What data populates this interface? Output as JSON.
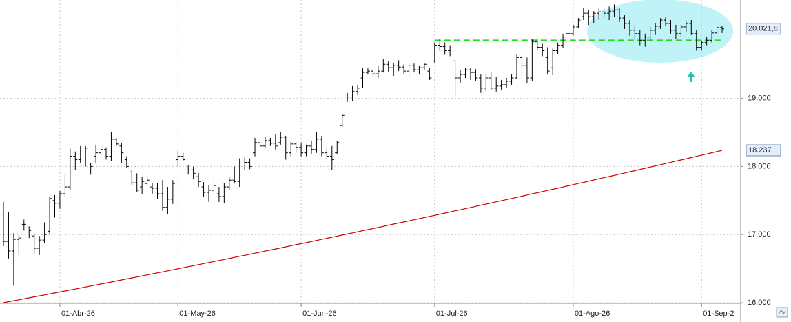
{
  "chart_data": {
    "type": "ohlc",
    "categories": [
      null,
      null,
      null,
      null,
      null,
      null,
      null,
      null,
      null,
      null,
      null,
      "01-Abr-26",
      null,
      null,
      null,
      null,
      null,
      null,
      null,
      null,
      null,
      null,
      null,
      null,
      null,
      null,
      null,
      null,
      null,
      null,
      null,
      null,
      null,
      null,
      "01-May-26",
      null,
      null,
      null,
      null,
      null,
      null,
      null,
      null,
      null,
      null,
      null,
      null,
      null,
      null,
      null,
      null,
      null,
      null,
      null,
      null,
      null,
      null,
      null,
      "01-Jun-26",
      null,
      null,
      null,
      null,
      null,
      null,
      null,
      null,
      null,
      null,
      null,
      null,
      null,
      null,
      null,
      null,
      null,
      null,
      null,
      null,
      null,
      null,
      null,
      null,
      null,
      "01-Jul-26",
      null,
      null,
      null,
      null,
      null,
      null,
      null,
      null,
      null,
      null,
      null,
      null,
      null,
      null,
      null,
      null,
      null,
      null,
      null,
      null,
      null,
      null,
      null,
      null,
      null,
      null,
      "01-Ago-26",
      null,
      null,
      null,
      null,
      null,
      null,
      null,
      null,
      null,
      null,
      null,
      null,
      null,
      null,
      null,
      null,
      null,
      null,
      null,
      null,
      null,
      null,
      null,
      null,
      "01-Sep-2",
      null,
      null,
      null,
      null
    ],
    "open": [
      17300,
      16900,
      16760,
      16930,
      17150,
      17100,
      16980,
      16800,
      16920,
      17050,
      17500,
      17460,
      17600,
      17700,
      18150,
      18100,
      18080,
      18020,
      18150,
      18200,
      18250,
      18150,
      18400,
      18300,
      18100,
      17920,
      17760,
      17700,
      17750,
      17700,
      17680,
      17600,
      17400,
      17520,
      18100,
      18150,
      17980,
      17950,
      17850,
      17700,
      17620,
      17650,
      17600,
      17560,
      17700,
      17800,
      17780,
      18080,
      18060,
      18200,
      18350,
      18300,
      18380,
      18340,
      18350,
      18430,
      18200,
      18330,
      18280,
      18200,
      18300,
      18250,
      18400,
      18200,
      18150,
      18200,
      18600,
      18960,
      19020,
      19100,
      19300,
      19380,
      19400,
      19360,
      19400,
      19500,
      19450,
      19480,
      19460,
      19400,
      19480,
      19420,
      19450,
      19400,
      19550,
      19780,
      19760,
      19700,
      19550,
      19300,
      19350,
      19420,
      19380,
      19300,
      19150,
      19300,
      19150,
      19180,
      19200,
      19250,
      19300,
      19600,
      19480,
      19300,
      19830,
      19750,
      19600,
      19450,
      19700,
      19780,
      19950,
      19950,
      20050,
      20200,
      20250,
      20200,
      20250,
      20270,
      20250,
      20280,
      20300,
      20180,
      20100,
      20000,
      19950,
      19850,
      19900,
      20000,
      20060,
      20150,
      20100,
      20000,
      19950,
      20050,
      20100,
      19950,
      19750,
      19820,
      19850,
      19960,
      20040
    ],
    "high": [
      17480,
      17330,
      17020,
      16990,
      17220,
      17120,
      17010,
      16980,
      17180,
      17560,
      17580,
      17640,
      17880,
      18260,
      18220,
      18300,
      18300,
      18050,
      18320,
      18330,
      18280,
      18500,
      18420,
      18350,
      18150,
      17950,
      17900,
      17850,
      17860,
      17760,
      17760,
      17800,
      17700,
      17800,
      18230,
      18200,
      18020,
      18000,
      17900,
      17770,
      17720,
      17800,
      17700,
      17760,
      17850,
      18000,
      18120,
      18130,
      18120,
      18420,
      18420,
      18430,
      18420,
      18470,
      18500,
      18450,
      18360,
      18360,
      18350,
      18320,
      18380,
      18500,
      18450,
      18280,
      18300,
      18370,
      18770,
      19080,
      19180,
      19200,
      19440,
      19440,
      19420,
      19480,
      19580,
      19550,
      19520,
      19560,
      19500,
      19520,
      19510,
      19480,
      19520,
      19450,
      19820,
      19870,
      19820,
      19780,
      19560,
      19420,
      19450,
      19450,
      19430,
      19350,
      19350,
      19380,
      19320,
      19270,
      19300,
      19350,
      19640,
      19660,
      19600,
      19870,
      19880,
      19800,
      19750,
      19730,
      19820,
      19950,
      20000,
      20080,
      20180,
      20330,
      20300,
      20280,
      20320,
      20330,
      20350,
      20380,
      20320,
      20220,
      20150,
      20080,
      20000,
      19950,
      20050,
      20100,
      20180,
      20200,
      20150,
      20080,
      20080,
      20130,
      20150,
      20000,
      19850,
      19900,
      20000,
      20060,
      20060
    ],
    "low": [
      16830,
      16650,
      16250,
      16700,
      17060,
      16950,
      16720,
      16700,
      16880,
      17000,
      17250,
      17380,
      17550,
      17650,
      17950,
      18050,
      18000,
      17880,
      18050,
      18100,
      18100,
      18080,
      18300,
      18050,
      17980,
      17730,
      17620,
      17600,
      17720,
      17600,
      17520,
      17350,
      17300,
      17450,
      18000,
      18080,
      17880,
      17820,
      17700,
      17550,
      17480,
      17600,
      17480,
      17460,
      17650,
      17750,
      17700,
      17950,
      17960,
      18150,
      18270,
      18280,
      18300,
      18250,
      18320,
      18100,
      18150,
      18200,
      18150,
      18150,
      18180,
      18200,
      18150,
      18100,
      17950,
      18180,
      18580,
      18950,
      18960,
      19050,
      19150,
      19350,
      19320,
      19300,
      19380,
      19380,
      19330,
      19400,
      19350,
      19320,
      19380,
      19350,
      19420,
      19270,
      19520,
      19700,
      19640,
      19620,
      19020,
      19230,
      19300,
      19270,
      19250,
      19080,
      19100,
      19120,
      19100,
      19120,
      19150,
      19200,
      19280,
      19280,
      19220,
      19250,
      19700,
      19620,
      19350,
      19340,
      19650,
      19740,
      19850,
      19920,
      20030,
      20150,
      20080,
      20100,
      20150,
      20200,
      20150,
      20200,
      20120,
      20020,
      19920,
      19880,
      19780,
      19760,
      19850,
      19930,
      20020,
      20070,
      19950,
      19870,
      19900,
      19980,
      19930,
      19700,
      19700,
      19780,
      19820,
      19940,
      19960
    ],
    "close": [
      16900,
      16760,
      16930,
      16950,
      17150,
      17060,
      16800,
      16920,
      17000,
      17530,
      17460,
      17600,
      17700,
      18150,
      18100,
      18080,
      18270,
      18000,
      18200,
      18250,
      18150,
      18400,
      18330,
      18200,
      18000,
      17760,
      17650,
      17780,
      17800,
      17680,
      17600,
      17400,
      17520,
      17750,
      18150,
      18100,
      17950,
      17900,
      17780,
      17620,
      17650,
      17720,
      17560,
      17700,
      17800,
      17780,
      18080,
      18060,
      18000,
      18350,
      18300,
      18380,
      18340,
      18300,
      18430,
      18200,
      18330,
      18280,
      18200,
      18300,
      18250,
      18400,
      18200,
      18150,
      18100,
      18350,
      18750,
      19020,
      19100,
      19150,
      19380,
      19400,
      19360,
      19400,
      19500,
      19450,
      19480,
      19460,
      19400,
      19480,
      19420,
      19450,
      19500,
      19300,
      19780,
      19760,
      19700,
      19650,
      19300,
      19350,
      19420,
      19380,
      19300,
      19150,
      19300,
      19150,
      19180,
      19200,
      19250,
      19300,
      19600,
      19480,
      19300,
      19830,
      19750,
      19700,
      19400,
      19700,
      19780,
      19900,
      19950,
      20050,
      20150,
      20250,
      20200,
      20250,
      20270,
      20250,
      20280,
      20300,
      20180,
      20100,
      20000,
      19950,
      19850,
      19900,
      20000,
      20060,
      20150,
      20100,
      20000,
      19950,
      20050,
      20100,
      19950,
      19750,
      19820,
      19850,
      19960,
      20040,
      20020
    ],
    "color": "#000000",
    "overlay": {
      "type": "line",
      "color": "#cc0000",
      "values": [
        16000,
        16014,
        16029,
        16043,
        16057,
        16071,
        16086,
        16100,
        16114,
        16129,
        16143,
        16158,
        16172,
        16187,
        16201,
        16216,
        16231,
        16245,
        16260,
        16274,
        16289,
        16304,
        16319,
        16334,
        16349,
        16364,
        16378,
        16393,
        16408,
        16423,
        16438,
        16453,
        16468,
        16483,
        16498,
        16514,
        16529,
        16544,
        16559,
        16574,
        16589,
        16604,
        16620,
        16635,
        16650,
        16666,
        16681,
        16696,
        16711,
        16727,
        16742,
        16758,
        16773,
        16789,
        16804,
        16820,
        16836,
        16851,
        16867,
        16882,
        16898,
        16914,
        16930,
        16946,
        16962,
        16978,
        16993,
        17009,
        17025,
        17041,
        17057,
        17073,
        17089,
        17105,
        17121,
        17138,
        17154,
        17170,
        17186,
        17202,
        17218,
        17234,
        17251,
        17267,
        17283,
        17300,
        17316,
        17332,
        17349,
        17365,
        17381,
        17398,
        17414,
        17431,
        17447,
        17464,
        17481,
        17497,
        17514,
        17530,
        17547,
        17564,
        17581,
        17598,
        17615,
        17632,
        17648,
        17665,
        17682,
        17699,
        17716,
        17733,
        17750,
        17767,
        17784,
        17802,
        17819,
        17836,
        17853,
        17870,
        17887,
        17904,
        17922,
        17939,
        17957,
        17974,
        17991,
        18009,
        18026,
        18044,
        18061,
        18079,
        18096,
        18114,
        18131,
        18149,
        18167,
        18184,
        18202,
        18219,
        18237
      ]
    },
    "level": {
      "value": 19850,
      "color": "#22dd22"
    },
    "last_price": {
      "value": 20021.8,
      "label": "20.021,8"
    },
    "overlay_last": {
      "value": 18237,
      "label": "18.237"
    },
    "ylim": [
      15990,
      20444
    ],
    "yticks": [
      {
        "value": 16000,
        "label": "16.000"
      },
      {
        "value": 17000,
        "label": "17.000"
      },
      {
        "value": 18000,
        "label": "18.000"
      },
      {
        "value": 19000,
        "label": "19.000"
      }
    ],
    "grid": true
  }
}
